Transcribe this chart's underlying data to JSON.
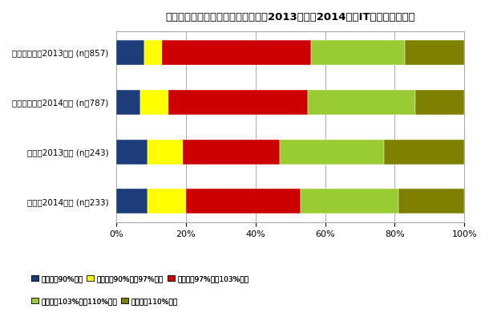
{
  "title": "中堪中小企業および大企業における2013年度～2014年度IT支出予算増減率",
  "categories": [
    "中堪中小企業2013年度 (n＝857)",
    "中堪中小企業2014年度 (n＝787)",
    "大企業2013年度 (n＝243)",
    "大企業2014年度 (n＝233)"
  ],
  "segments": [
    [
      8.0,
      5.0,
      43.0,
      27.0,
      17.0
    ],
    [
      7.0,
      8.0,
      40.0,
      31.0,
      14.0
    ],
    [
      9.0,
      10.0,
      28.0,
      30.0,
      23.0
    ],
    [
      9.0,
      11.0,
      33.0,
      28.0,
      19.0
    ]
  ],
  "colors": [
    "#1c3d7a",
    "#ffff00",
    "#cc0000",
    "#99cc33",
    "#808000"
  ],
  "legend_labels": [
    "前年度比90%未満",
    "前年度比90%以上97%未満",
    "前年度比97%以上103%未満",
    "前年度比103%以上110%未満",
    "前年度比110%以上"
  ],
  "xlabel_ticks": [
    "0%",
    "20%",
    "40%",
    "60%",
    "80%",
    "100%"
  ],
  "background_color": "#ffffff"
}
